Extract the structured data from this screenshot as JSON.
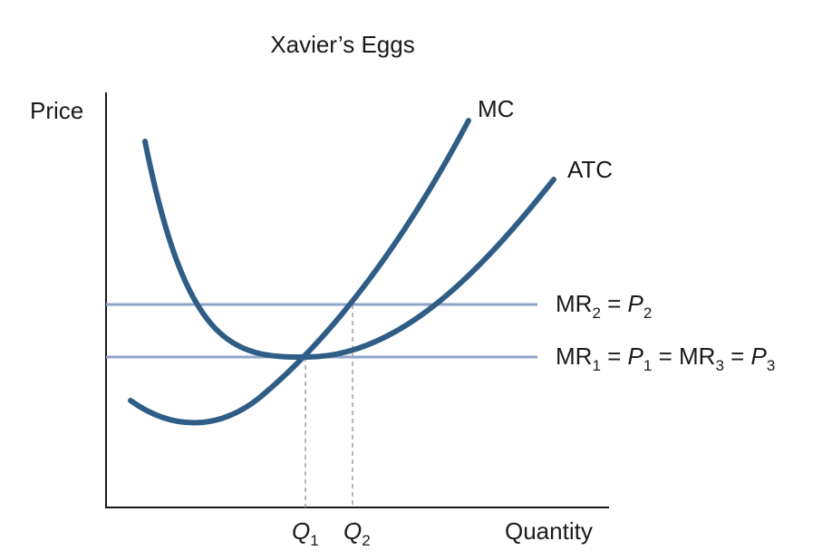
{
  "title": "Xavier’s Eggs",
  "axes": {
    "y_label": "Price",
    "x_label": "Quantity"
  },
  "curves": {
    "mc_label": "MC",
    "atc_label": "ATC"
  },
  "mr2_label": {
    "mr": "MR",
    "mr_sub": "2",
    "eq": " = ",
    "p": "P",
    "p_sub": "2"
  },
  "mr1_label": {
    "mr1": "MR",
    "mr1_sub": "1",
    "eq1": " = ",
    "p1": "P",
    "p1_sub": "1",
    "eq2": " = MR",
    "mr3_sub": "3",
    "eq3": " = ",
    "p3": "P",
    "p3_sub": "3"
  },
  "quantities": {
    "q1": "Q",
    "q1_sub": "1",
    "q2": "Q",
    "q2_sub": "2"
  },
  "colors": {
    "curve": "#2f5d86",
    "mr_line": "#8fa3c8",
    "axis": "#1a1a1a",
    "guide": "#9a9a9a"
  }
}
